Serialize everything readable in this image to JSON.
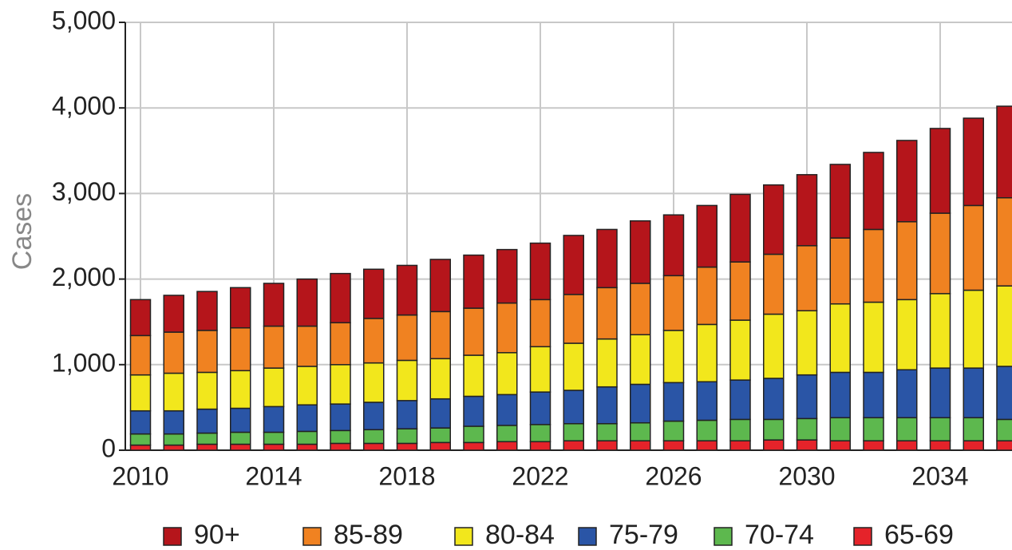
{
  "chart_data": {
    "type": "stacked_bar",
    "y_label": "Cases",
    "categories": [
      "2010",
      null,
      null,
      null,
      "2014",
      null,
      null,
      null,
      "2018",
      null,
      null,
      null,
      "2022",
      null,
      null,
      null,
      "2026",
      null,
      null,
      null,
      "2030",
      null,
      null,
      null,
      "2034",
      null,
      null
    ],
    "series": [
      {
        "name": "90+",
        "color": "#b5151b",
        "values": [
          420,
          430,
          455,
          470,
          500,
          550,
          575,
          575,
          580,
          610,
          620,
          625,
          660,
          690,
          680,
          730,
          710,
          720,
          790,
          810,
          830,
          860,
          900,
          950,
          990,
          1020,
          1070
        ]
      },
      {
        "name": "85-89",
        "color": "#f08221",
        "values": [
          460,
          480,
          490,
          500,
          490,
          470,
          490,
          520,
          530,
          550,
          550,
          580,
          550,
          570,
          600,
          600,
          640,
          670,
          680,
          700,
          760,
          770,
          850,
          910,
          940,
          990,
          1030
        ]
      },
      {
        "name": "80-84",
        "color": "#f2e71c",
        "values": [
          420,
          440,
          430,
          440,
          450,
          450,
          460,
          460,
          470,
          470,
          480,
          490,
          530,
          550,
          560,
          580,
          610,
          670,
          700,
          750,
          750,
          800,
          820,
          820,
          870,
          910,
          940
        ]
      },
      {
        "name": "75-79",
        "color": "#2a55a6",
        "values": [
          270,
          270,
          280,
          280,
          300,
          310,
          310,
          320,
          330,
          340,
          350,
          360,
          380,
          390,
          430,
          450,
          450,
          450,
          460,
          480,
          510,
          530,
          530,
          560,
          580,
          580,
          620
        ]
      },
      {
        "name": "70-74",
        "color": "#5db84e",
        "values": [
          130,
          130,
          130,
          140,
          140,
          150,
          150,
          160,
          170,
          170,
          190,
          190,
          200,
          200,
          200,
          210,
          230,
          240,
          250,
          240,
          250,
          270,
          270,
          270,
          270,
          270,
          250
        ]
      },
      {
        "name": "65-69",
        "color": "#e5232a",
        "values": [
          60,
          60,
          70,
          70,
          70,
          70,
          80,
          80,
          80,
          90,
          90,
          100,
          100,
          110,
          110,
          110,
          110,
          110,
          110,
          120,
          120,
          110,
          110,
          110,
          110,
          110,
          110
        ]
      }
    ],
    "ylim": [
      0,
      5000
    ],
    "yticks": [
      0,
      {
        "value": 1000,
        "label": "1,000"
      },
      {
        "value": 2000,
        "label": "2,000"
      },
      {
        "value": 3000,
        "label": "3,000"
      },
      {
        "value": 4000,
        "label": "4,000"
      },
      {
        "value": 5000,
        "label": "5,000"
      }
    ],
    "grid": true
  }
}
